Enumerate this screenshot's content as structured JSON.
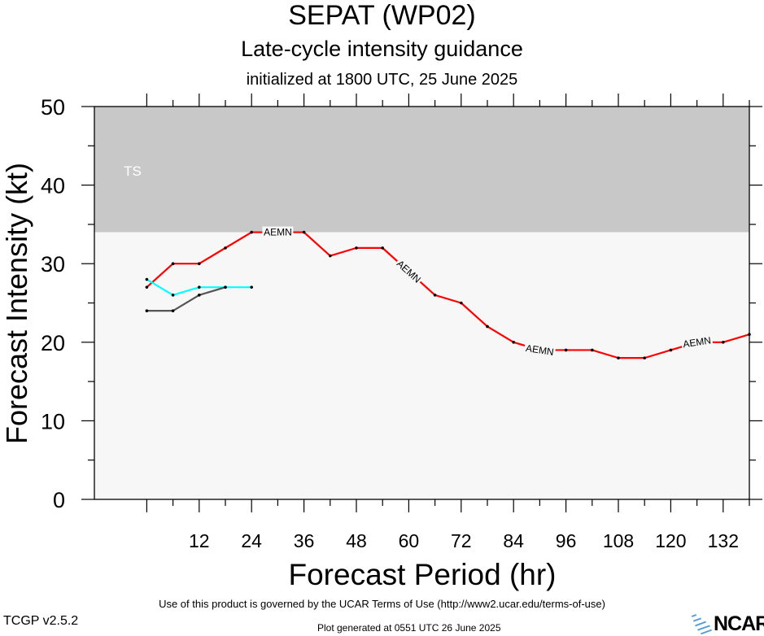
{
  "header": {
    "title": "SEPAT (WP02)",
    "subtitle": "Late-cycle intensity guidance",
    "init": "initialized at 1800 UTC, 25 June 2025"
  },
  "footer": {
    "terms": "Use of this product is governed by the UCAR Terms of Use (http://www2.ucar.edu/terms-of-use)",
    "version": "TCGP v2.5.2",
    "generated": "Plot generated at 0551 UTC   26 June 2025",
    "logo_text": "NCAR"
  },
  "colors": {
    "band_ts": "#c8c8c8",
    "band_td": "#f7f7f7",
    "aemn": "#ff0000",
    "cyan_series": "#00ffff",
    "gray_series": "#555555"
  },
  "chart_data": {
    "type": "line",
    "xlabel": "Forecast Period (hr)",
    "ylabel": "Forecast Intensity (kt)",
    "xlim": [
      -12,
      138
    ],
    "ylim": [
      0,
      50
    ],
    "xticks": [
      12,
      24,
      36,
      48,
      60,
      72,
      84,
      96,
      108,
      120,
      132
    ],
    "yticks": [
      0,
      10,
      20,
      30,
      40,
      50
    ],
    "bands": [
      {
        "label": "TS",
        "from": 34,
        "to": 50,
        "color": "#c8c8c8"
      },
      {
        "label": "",
        "from": 0,
        "to": 34,
        "color": "#f7f7f7"
      }
    ],
    "series": [
      {
        "name": "AEMN",
        "color": "#ff0000",
        "x": [
          0,
          6,
          12,
          18,
          24,
          30,
          36,
          42,
          48,
          54,
          60,
          66,
          72,
          78,
          84,
          90,
          96,
          102,
          108,
          114,
          120,
          126,
          132,
          138
        ],
        "y": [
          27,
          30,
          30,
          32,
          34,
          34,
          34,
          31,
          32,
          32,
          29,
          26,
          25,
          22,
          20,
          19,
          19,
          19,
          18,
          18,
          19,
          20,
          20,
          21
        ],
        "inline_labels_at": [
          30,
          60,
          90,
          126
        ]
      },
      {
        "name": "",
        "color": "#00ffff",
        "x": [
          0,
          6,
          12,
          18,
          24
        ],
        "y": [
          28,
          26,
          27,
          27,
          27
        ]
      },
      {
        "name": "",
        "color": "#555555",
        "x": [
          0,
          6,
          12,
          18
        ],
        "y": [
          24,
          24,
          26,
          27
        ]
      }
    ]
  }
}
